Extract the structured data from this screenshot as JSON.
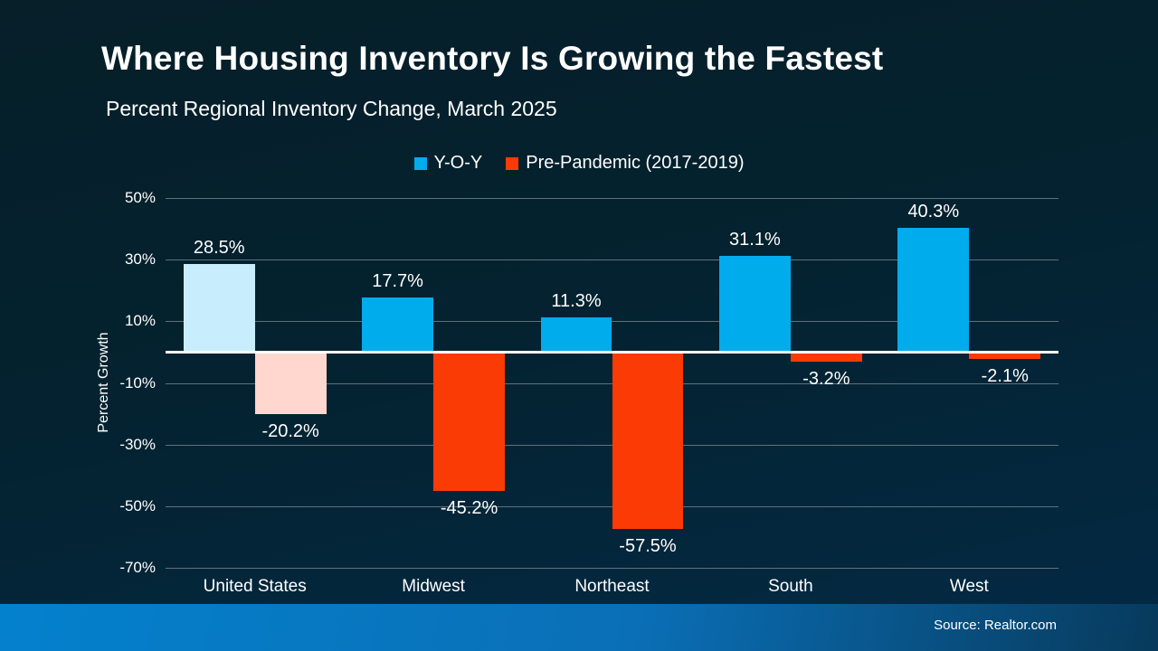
{
  "slide": {
    "title": "Where Housing Inventory Is Growing the Fastest",
    "subtitle": "Percent Regional Inventory Change, March 2025",
    "source": "Source: Realtor.com"
  },
  "chart_data": {
    "type": "bar",
    "title": "Where Housing Inventory Is Growing the Fastest",
    "subtitle": "Percent Regional Inventory Change, March 2025",
    "xlabel": "",
    "ylabel": "Percent Growth",
    "ylim": [
      -70,
      50
    ],
    "y_ticks": [
      50,
      30,
      10,
      -10,
      -30,
      -50,
      -70
    ],
    "y_tick_suffix": "%",
    "grid": true,
    "zero_line": true,
    "legend_position": "top-center",
    "categories": [
      "United States",
      "Midwest",
      "Northeast",
      "South",
      "West"
    ],
    "series": [
      {
        "name": "Y-O-Y",
        "color": "#00acec",
        "muted_color": "#c8eefe",
        "values": [
          28.5,
          17.7,
          11.3,
          31.1,
          40.3
        ]
      },
      {
        "name": "Pre-Pandemic (2017-2019)",
        "color": "#fb3b05",
        "muted_color": "#ffd7ce",
        "values": [
          -20.2,
          -45.2,
          -57.5,
          -3.2,
          -2.1
        ]
      }
    ],
    "muted_category": "United States",
    "muted_category_index": 0,
    "value_labels": [
      "28.5%",
      "17.7%",
      "11.3%",
      "31.1%",
      "40.3%",
      "-20.2%",
      "-45.2%",
      "-57.5%",
      "-3.2%",
      "-2.1%"
    ]
  },
  "colors": {
    "background_top": "#061f29",
    "background_bottom": "#032a45",
    "footer_left": "#0481cd",
    "footer_right": "#073a5c",
    "gridline": "#61707a",
    "zero_line": "#ffffff",
    "text": "#ffffff"
  }
}
